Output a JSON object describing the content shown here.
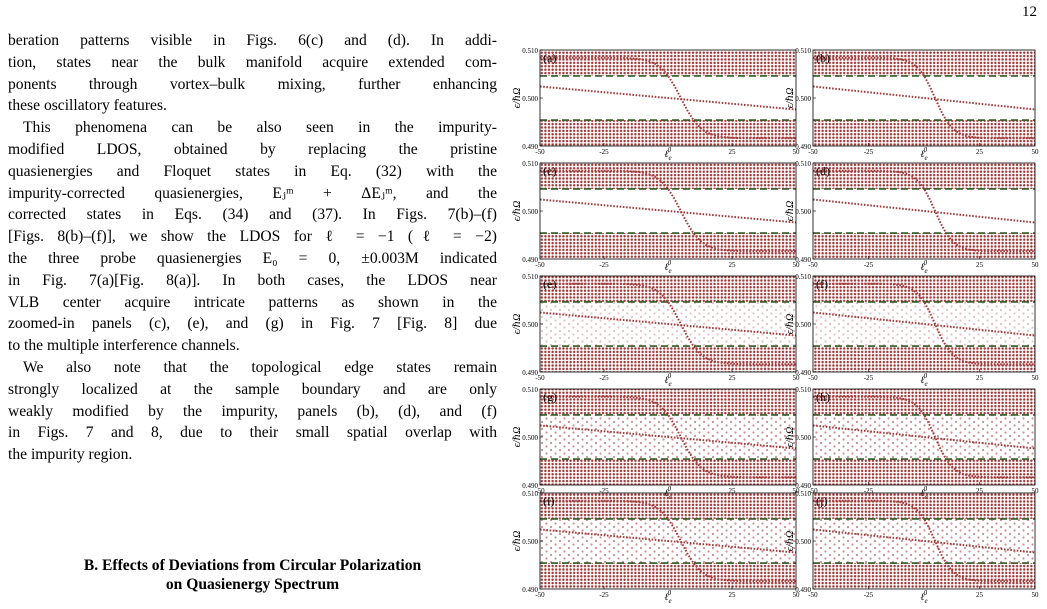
{
  "header": {
    "page_number": "12"
  },
  "body": {
    "paragraphs": [
      [
        "beration patterns visible in Figs. 6(c) and (d). In addi-",
        "tion, states near the bulk manifold acquire extended com-",
        "ponents through vortex–bulk mixing, further enhancing",
        "these oscillatory features."
      ],
      [
        "This phenomena can be also seen in the impurity-",
        "modified LDOS, obtained by replacing the pristine",
        "quasienergies and Floquet states in Eq. (32) with the",
        "impurity-corrected quasienergies, Eⱼᵐ + ΔEⱼᵐ, and the",
        "corrected states in Eqs. (34) and (37). In Figs. 7(b)–(f)",
        "[Figs. 8(b)–(f)], we show the LDOS for ℓ = −1 (ℓ = −2)",
        "the three probe quasienergies E₀ = 0, ±0.003M indicated",
        "in Fig. 7(a)[Fig. 8(a)]. In both cases, the LDOS near",
        "VLB center acquire intricate patterns as shown in the",
        "zoomed-in panels (c), (e), and (g) in Fig. 7 [Fig. 8] due",
        "to the multiple interference channels."
      ],
      [
        "We also note that the topological edge states remain",
        "strongly localized at the sample boundary and are only",
        "weakly modified by the impurity, panels (b), (d), and (f)",
        "in Figs. 7 and 8, due to their small spatial overlap with",
        "the impurity region."
      ]
    ],
    "section_heading": [
      "B.   Effects of Deviations from Circular Polarization",
      "on Quasienergy Spectrum"
    ]
  },
  "figure": {
    "panels": [
      "(a)",
      "(b)",
      "(c)",
      "(d)",
      "(e)",
      "(f)",
      "(g)",
      "(h)",
      "(i)",
      "(j)"
    ],
    "ylabel": "ϵ/ℏΩ",
    "xlabel": "ℓ",
    "xlabel_sub": "e",
    "xlabel_sup": "0",
    "ylim": [
      0.49,
      0.51
    ],
    "yticks": [
      {
        "value": 0.49,
        "label": "0.490"
      },
      {
        "value": 0.5,
        "label": "0.500"
      },
      {
        "value": 0.51,
        "label": "0.510"
      }
    ],
    "xlim": [
      -50,
      50
    ],
    "xticks": [
      -50,
      -25,
      25,
      50
    ]
  }
}
